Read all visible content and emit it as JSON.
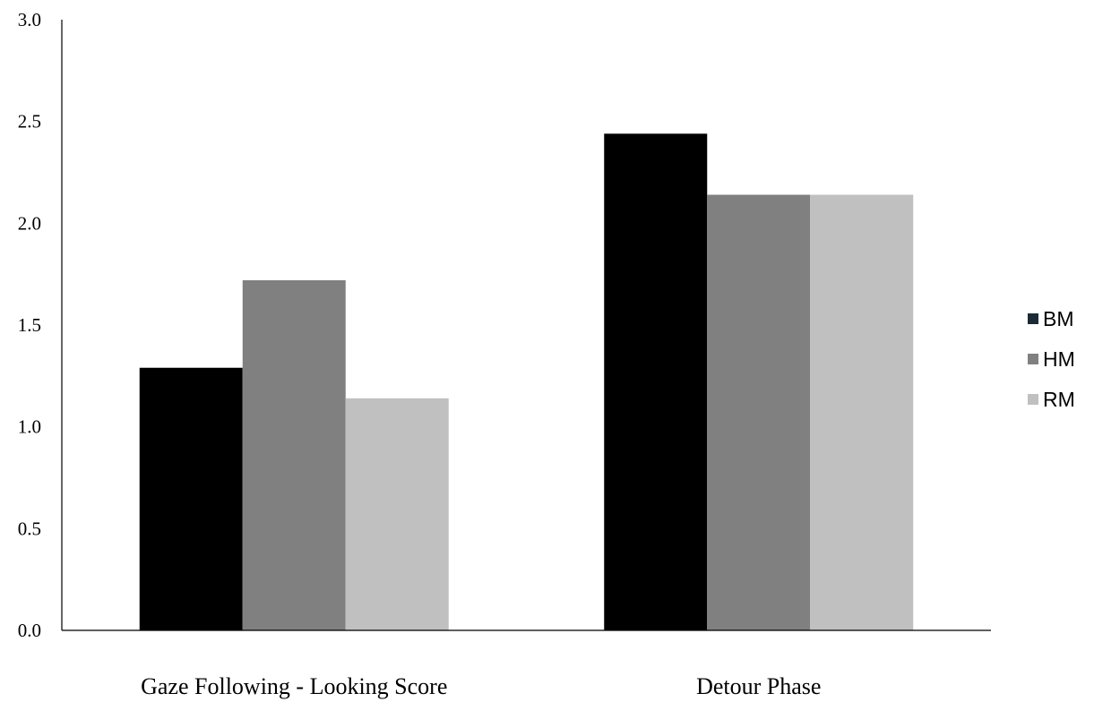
{
  "chart_data": {
    "type": "bar",
    "categories": [
      "Gaze Following - Looking Score",
      "Detour Phase"
    ],
    "series": [
      {
        "name": "BM",
        "values": [
          1.29,
          2.44
        ],
        "color": "#000000",
        "legend_color": "#1b2a35"
      },
      {
        "name": "HM",
        "values": [
          1.72,
          2.14
        ],
        "color": "#808080",
        "legend_color": "#808080"
      },
      {
        "name": "RM",
        "values": [
          1.14,
          2.14
        ],
        "color": "#c0c0c0",
        "legend_color": "#c0c0c0"
      }
    ],
    "yticks": [
      "0.0",
      "0.5",
      "1.0",
      "1.5",
      "2.0",
      "2.5",
      "3.0"
    ],
    "ylim": [
      0,
      3
    ],
    "grid": false,
    "legend_position": "right"
  }
}
